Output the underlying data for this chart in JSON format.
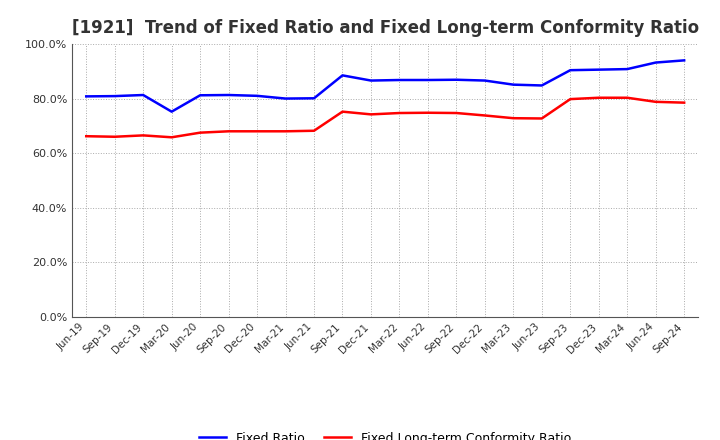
{
  "title": "[1921]  Trend of Fixed Ratio and Fixed Long-term Conformity Ratio",
  "x_labels": [
    "Jun-19",
    "Sep-19",
    "Dec-19",
    "Mar-20",
    "Jun-20",
    "Sep-20",
    "Dec-20",
    "Mar-21",
    "Jun-21",
    "Sep-21",
    "Dec-21",
    "Mar-22",
    "Jun-22",
    "Sep-22",
    "Dec-22",
    "Mar-23",
    "Jun-23",
    "Sep-23",
    "Dec-23",
    "Mar-24",
    "Jun-24",
    "Sep-24"
  ],
  "fixed_ratio": [
    80.8,
    80.9,
    81.3,
    75.2,
    81.2,
    81.3,
    81.0,
    80.0,
    80.1,
    88.5,
    86.6,
    86.8,
    86.8,
    86.9,
    86.6,
    85.1,
    84.8,
    90.4,
    90.6,
    90.8,
    93.2,
    94.0
  ],
  "fixed_lt_ratio": [
    66.2,
    66.0,
    66.5,
    65.8,
    67.5,
    68.0,
    68.0,
    68.0,
    68.2,
    75.2,
    74.2,
    74.7,
    74.8,
    74.7,
    73.8,
    72.8,
    72.7,
    79.8,
    80.3,
    80.3,
    78.8,
    78.5
  ],
  "fixed_ratio_color": "#0000ff",
  "fixed_lt_ratio_color": "#ff0000",
  "ylim": [
    0,
    100
  ],
  "yticks": [
    0,
    20,
    40,
    60,
    80,
    100
  ],
  "background_color": "#ffffff",
  "grid_color": "#aaaaaa",
  "title_fontsize": 12,
  "legend_fixed_ratio": "Fixed Ratio",
  "legend_fixed_lt_ratio": "Fixed Long-term Conformity Ratio",
  "line_width": 1.8
}
